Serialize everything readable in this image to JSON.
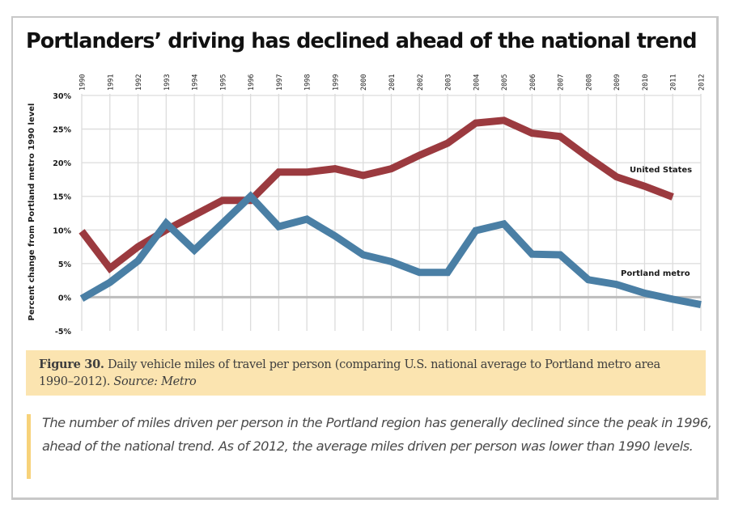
{
  "title": "Portlanders’ driving has declined ahead of the national trend",
  "caption": {
    "figure_label": "Figure 30.",
    "text": "Daily vehicle miles of travel per person (comparing U.S. national average to Portland metro area 1990–2012).",
    "source": "Source: Metro"
  },
  "quote": "The number of miles driven per person in the Portland region has generally declined since the peak in 1996, ahead of the national trend. As of 2012, the average miles driven per person was lower than 1990 levels.",
  "colors": {
    "united_states": "#9b3a3f",
    "portland_metro": "#4a7fa5",
    "grid": "#dcdcdc",
    "zero_line": "#bdbdbd",
    "caption_bg": "#fbe4b0",
    "quote_bar": "#f7d27a"
  },
  "chart_data": {
    "type": "line",
    "title": "Portlanders’ driving has declined ahead of the national trend",
    "xlabel": "",
    "ylabel": "Percent change from Portland metro 1990 level",
    "x": [
      1990,
      1991,
      1992,
      1993,
      1994,
      1995,
      1996,
      1997,
      1998,
      1999,
      2000,
      2001,
      2002,
      2003,
      2004,
      2005,
      2006,
      2007,
      2008,
      2009,
      2010,
      2011,
      2012
    ],
    "x_tick_labels": [
      "1990",
      "1991",
      "1992",
      "1993",
      "1994",
      "1995",
      "1996",
      "1997",
      "1998",
      "1999",
      "2000",
      "2001",
      "2002",
      "2003",
      "2004",
      "2005",
      "2006",
      "2007",
      "2008",
      "2009",
      "2010",
      "2011",
      "2012"
    ],
    "x_tick_position": "top",
    "ylim": [
      -5,
      30
    ],
    "y_ticks": [
      30,
      25,
      20,
      15,
      10,
      5,
      0,
      -5
    ],
    "y_tick_labels": [
      "30%",
      "25%",
      "20%",
      "15%",
      "10%",
      "5%",
      "0%",
      "-5%"
    ],
    "grid": true,
    "legend": "inline-labels",
    "series": [
      {
        "name": "United States",
        "label_position": "right-of-line",
        "values": [
          9.8,
          4.3,
          7.5,
          10.0,
          12.2,
          14.4,
          14.4,
          18.6,
          18.6,
          19.1,
          18.1,
          19.1,
          21.1,
          22.9,
          25.9,
          26.3,
          24.4,
          23.9,
          20.8,
          17.9,
          16.5,
          14.9,
          null
        ]
      },
      {
        "name": "Portland metro",
        "label_position": "above-line",
        "values": [
          -0.2,
          2.2,
          5.4,
          11.0,
          7.0,
          11.0,
          15.0,
          10.5,
          11.6,
          9.1,
          6.3,
          5.3,
          3.7,
          3.7,
          9.9,
          10.9,
          6.4,
          6.3,
          2.6,
          1.9,
          0.6,
          -0.3,
          -1.1
        ]
      }
    ]
  }
}
